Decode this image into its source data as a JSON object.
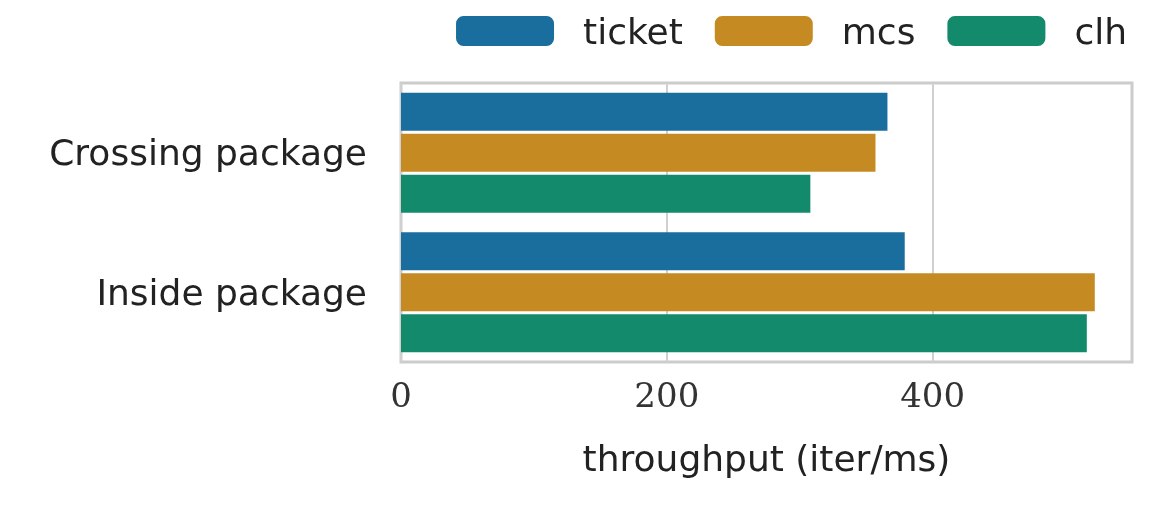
{
  "chart_data": {
    "type": "bar",
    "orientation": "horizontal",
    "xlabel": "throughput (iter/ms)",
    "categories": [
      "Crossing package",
      "Inside package"
    ],
    "series": [
      {
        "name": "ticket",
        "color": "#1a6e9e",
        "values": [
          366,
          379
        ]
      },
      {
        "name": "mcs",
        "color": "#c68a22",
        "values": [
          357,
          522
        ]
      },
      {
        "name": "clh",
        "color": "#138a6c",
        "values": [
          308,
          516
        ]
      }
    ],
    "xlim": [
      0,
      550
    ],
    "xticks": [
      0,
      200,
      400
    ],
    "grid": "x",
    "legend": "top right"
  }
}
